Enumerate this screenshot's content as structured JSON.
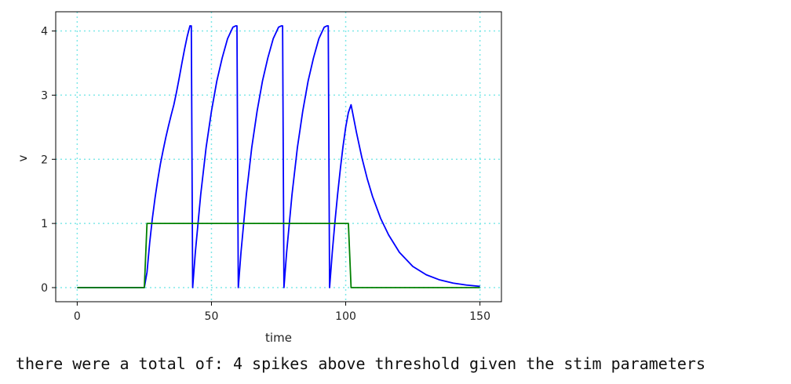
{
  "chart_data": {
    "type": "line",
    "title": "",
    "xlabel": "time",
    "ylabel": "v",
    "xlim": [
      -8,
      158
    ],
    "ylim": [
      -0.22,
      4.3
    ],
    "x_ticks": [
      0,
      50,
      100,
      150
    ],
    "y_ticks": [
      0,
      1,
      2,
      3,
      4
    ],
    "grid": true,
    "grid_color": "#7fe8e8",
    "series": [
      {
        "color": "#0000ff",
        "x": [
          0,
          25,
          26,
          27,
          28,
          29,
          30,
          31,
          32,
          33,
          34,
          35,
          36,
          37,
          38,
          39,
          40,
          41,
          42,
          42.5,
          43,
          44,
          46,
          48,
          50,
          52,
          54,
          56,
          58,
          59,
          59.5,
          60,
          61,
          63,
          65,
          67,
          69,
          71,
          73,
          75,
          76,
          76.5,
          77,
          78,
          80,
          82,
          84,
          86,
          88,
          90,
          92,
          93,
          93.5,
          94,
          95,
          96,
          97,
          98,
          99,
          100,
          101,
          102,
          104,
          106,
          108,
          110,
          113,
          116,
          120,
          125,
          130,
          135,
          140,
          145,
          150
        ],
        "values": [
          0,
          0,
          0.24,
          0.7,
          1.08,
          1.4,
          1.68,
          1.93,
          2.14,
          2.34,
          2.52,
          2.69,
          2.85,
          3.05,
          3.27,
          3.5,
          3.72,
          3.92,
          4.08,
          4.08,
          0,
          0.55,
          1.45,
          2.18,
          2.75,
          3.22,
          3.58,
          3.88,
          4.06,
          4.08,
          4.08,
          0,
          0.55,
          1.45,
          2.18,
          2.75,
          3.22,
          3.58,
          3.88,
          4.06,
          4.08,
          4.08,
          0,
          0.55,
          1.45,
          2.18,
          2.75,
          3.22,
          3.58,
          3.88,
          4.06,
          4.08,
          4.08,
          0,
          0.55,
          1.03,
          1.46,
          1.85,
          2.2,
          2.5,
          2.73,
          2.85,
          2.42,
          2.03,
          1.7,
          1.42,
          1.08,
          0.82,
          0.55,
          0.33,
          0.2,
          0.12,
          0.07,
          0.04,
          0.02
        ]
      },
      {
        "color": "#008000",
        "x": [
          0,
          25,
          26,
          101,
          102,
          150
        ],
        "values": [
          0,
          0,
          1,
          1,
          0,
          0
        ]
      }
    ]
  },
  "output": {
    "text": "there were a total of: 4 spikes above threshold given the stim parameters"
  }
}
